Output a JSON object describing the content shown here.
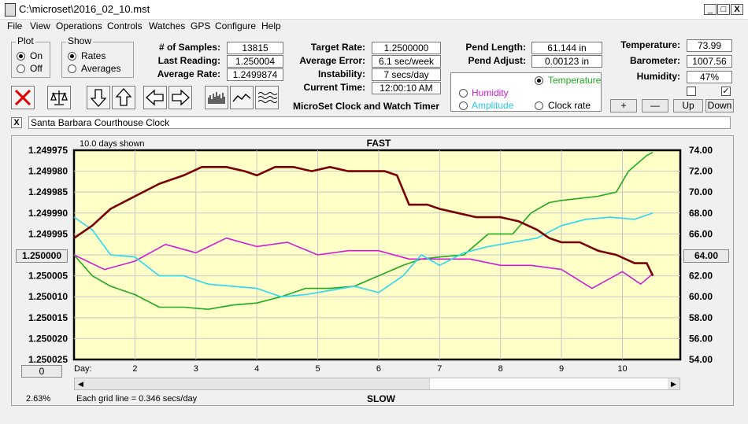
{
  "window": {
    "title": "C:\\microset\\2016_02_10.mst",
    "min_label": "_",
    "max_label": "□",
    "close_label": "X"
  },
  "menu": [
    "File",
    "View",
    "Operations",
    "Controls",
    "Watches",
    "GPS",
    "Configure",
    "Help"
  ],
  "plot_group": {
    "title": "Plot",
    "on_label": "On",
    "off_label": "Off",
    "selected": "On"
  },
  "show_group": {
    "title": "Show",
    "rates_label": "Rates",
    "averages_label": "Averages",
    "selected": "Rates"
  },
  "stats": {
    "samples_label": "# of Samples:",
    "samples": "13815",
    "last_reading_label": "Last Reading:",
    "last_reading": "1.250004",
    "avg_rate_label": "Average Rate:",
    "avg_rate": "1.2499874",
    "target_rate_label": "Target Rate:",
    "target_rate": "1.2500000",
    "avg_error_label": "Average Error:",
    "avg_error": "6.1 sec/week",
    "instability_label": "Instability:",
    "instability": "7 secs/day",
    "current_time_label": "Current Time:",
    "current_time": "12:00:10 AM",
    "pend_length_label": "Pend Length:",
    "pend_length": "61.144 in",
    "pend_adjust_label": "Pend Adjust:",
    "pend_adjust": "0.00123 in",
    "temperature_label": "Temperature:",
    "temperature": "73.99",
    "barometer_label": "Barometer:",
    "barometer": "1007.56",
    "humidity_label": "Humidity:",
    "humidity": "47%"
  },
  "app_caption": "MicroSet Clock and Watch Timer",
  "overlay_group": {
    "temperature_label": "Temperature",
    "humidity_label": "Humidity",
    "amplitude_label": "Amplitude",
    "clock_rate_label": "Clock rate",
    "selected": "Temperature"
  },
  "adjust_buttons": {
    "plus": "+",
    "minus": "—",
    "up": "Up",
    "down": "Down"
  },
  "checkbox_right_checked": true,
  "clock_close_label": "X",
  "clock_name": "Santa Barbara Courthouse Clock",
  "chart_header": {
    "days_shown": "10.0 days shown",
    "fast": "FAST",
    "slow": "SLOW"
  },
  "left_center_box": "1.250000",
  "right_center_box": "64.00",
  "zero_box": "0",
  "percent": "2.63%",
  "grid_note": "Each grid line = 0.346 secs/day",
  "colors": {
    "plot_bg": "#ffffc8",
    "rate": "#7a0000",
    "temperature": "#1faa1f",
    "humidity": "#d21ed2",
    "amplitude": "#28d8f0"
  },
  "chart_data": {
    "type": "line",
    "x_prefix": "Day:",
    "x_ticks": [
      "2",
      "3",
      "4",
      "5",
      "6",
      "7",
      "8",
      "9",
      "10"
    ],
    "xlim": [
      1,
      10.95
    ],
    "ylim_left": [
      1.250025,
      1.249975
    ],
    "ylim_right": [
      54,
      74
    ],
    "left_ticks": [
      "1.249975",
      "1.249980",
      "1.249985",
      "1.249990",
      "1.249995",
      "1.250000",
      "1.250005",
      "1.250010",
      "1.250015",
      "1.250020",
      "1.250025"
    ],
    "right_ticks": [
      "74.00",
      "72.00",
      "70.00",
      "68.00",
      "66.00",
      "64.00",
      "62.00",
      "60.00",
      "58.00",
      "56.00",
      "54.00"
    ],
    "series": [
      {
        "key": "rate",
        "axis": "left",
        "width": 2.6,
        "x": [
          1.0,
          1.3,
          1.6,
          2.0,
          2.4,
          2.8,
          3.1,
          3.5,
          3.8,
          4.0,
          4.3,
          4.6,
          4.9,
          5.2,
          5.5,
          5.8,
          6.1,
          6.3,
          6.5,
          6.8,
          7.0,
          7.3,
          7.6,
          8.0,
          8.3,
          8.6,
          8.8,
          9.0,
          9.3,
          9.6,
          9.9,
          10.2,
          10.4,
          10.5
        ],
        "y": [
          1.249996,
          1.249993,
          1.249989,
          1.249986,
          1.249983,
          1.249981,
          1.249979,
          1.249979,
          1.24998,
          1.249981,
          1.249979,
          1.249979,
          1.24998,
          1.249979,
          1.24998,
          1.24998,
          1.24998,
          1.249981,
          1.249988,
          1.249988,
          1.249989,
          1.24999,
          1.249991,
          1.249991,
          1.249992,
          1.249994,
          1.249996,
          1.249997,
          1.249997,
          1.249999,
          1.25,
          1.250002,
          1.250002,
          1.250005
        ]
      },
      {
        "key": "temperature",
        "axis": "right",
        "width": 1.6,
        "x": [
          1.0,
          1.3,
          1.6,
          2.0,
          2.4,
          2.8,
          3.2,
          3.6,
          4.0,
          4.4,
          4.8,
          5.2,
          5.6,
          6.0,
          6.4,
          6.7,
          7.0,
          7.4,
          7.8,
          8.2,
          8.5,
          8.8,
          9.0,
          9.3,
          9.6,
          9.9,
          10.1,
          10.4,
          10.5
        ],
        "y": [
          64.0,
          62.0,
          61.0,
          60.2,
          59.0,
          59.0,
          58.8,
          59.2,
          59.4,
          60.0,
          60.8,
          60.8,
          61.0,
          62.0,
          63.0,
          63.6,
          63.8,
          64.0,
          66.0,
          66.0,
          68.0,
          69.0,
          69.2,
          69.4,
          69.6,
          70.0,
          72.0,
          73.5,
          73.8
        ]
      },
      {
        "key": "humidity",
        "axis": "right",
        "width": 1.6,
        "x": [
          1.0,
          1.5,
          2.0,
          2.5,
          3.0,
          3.5,
          4.0,
          4.5,
          5.0,
          5.5,
          6.0,
          6.5,
          7.0,
          7.5,
          8.0,
          8.5,
          9.0,
          9.5,
          10.0,
          10.3,
          10.5
        ],
        "y": [
          64.0,
          62.6,
          63.4,
          65.0,
          64.2,
          65.6,
          64.8,
          65.2,
          64.0,
          64.4,
          64.4,
          63.6,
          63.6,
          63.6,
          63.0,
          63.0,
          62.6,
          60.8,
          62.4,
          61.2,
          62.2
        ]
      },
      {
        "key": "amplitude",
        "axis": "right",
        "width": 1.6,
        "x": [
          1.0,
          1.3,
          1.6,
          2.0,
          2.4,
          2.8,
          3.2,
          3.6,
          4.0,
          4.4,
          4.8,
          5.2,
          5.6,
          6.0,
          6.4,
          6.7,
          7.0,
          7.4,
          7.8,
          8.2,
          8.6,
          9.0,
          9.4,
          9.8,
          10.2,
          10.5
        ],
        "y": [
          67.6,
          66.4,
          64.0,
          63.8,
          62.0,
          62.0,
          61.2,
          61.0,
          60.8,
          60.0,
          60.2,
          60.6,
          61.0,
          60.4,
          62.0,
          64.0,
          63.0,
          64.2,
          64.8,
          65.2,
          65.6,
          66.8,
          67.4,
          67.6,
          67.4,
          68.0
        ]
      }
    ]
  }
}
